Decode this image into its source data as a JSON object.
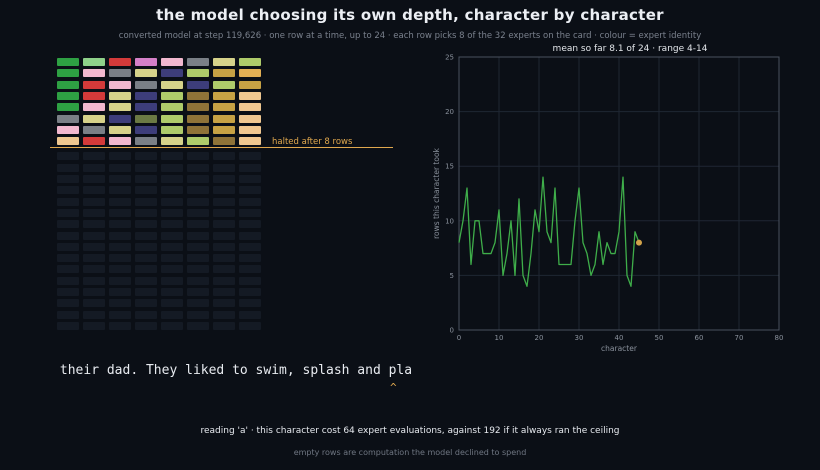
{
  "header": {
    "title": "the model choosing its own depth, character by character",
    "subtitle": "converted model at step 119,626  ·  one row at a time, up to 24  ·  each row picks 8 of the 32 experts on the card  ·  colour = expert identity"
  },
  "depth_grid": {
    "max_rows": 24,
    "experts_per_row": 8,
    "rows_used": 8,
    "halt_label": "halted after 8 rows",
    "empty_color": "#141a24",
    "rows": [
      [
        "#2ea043",
        "#8fd18a",
        "#d43a3a",
        "#d580c8",
        "#f2b8cf",
        "#7a7f86",
        "#d6d28a",
        "#aecb6a"
      ],
      [
        "#2ea043",
        "#f2b8cf",
        "#7a7f86",
        "#d6d28a",
        "#3d3d7a",
        "#aecb6a",
        "#c7a244",
        "#e3b054"
      ],
      [
        "#2ea043",
        "#d43a3a",
        "#f2b8cf",
        "#7a7f86",
        "#d6d28a",
        "#3d3d7a",
        "#aecb6a",
        "#c7a244"
      ],
      [
        "#2ea043",
        "#d43a3a",
        "#d6d28a",
        "#3d3d7a",
        "#aecb6a",
        "#8f7338",
        "#c7a244",
        "#efc790"
      ],
      [
        "#2ea043",
        "#f2b8cf",
        "#d6d28a",
        "#3d3d7a",
        "#aecb6a",
        "#8f7338",
        "#c7a244",
        "#efc790"
      ],
      [
        "#7a7f86",
        "#d6d28a",
        "#3d3d7a",
        "#6b7a44",
        "#aecb6a",
        "#8f7338",
        "#c7a244",
        "#efc790"
      ],
      [
        "#f2b8cf",
        "#7a7f86",
        "#d6d28a",
        "#3d3d7a",
        "#aecb6a",
        "#8f7338",
        "#c7a244",
        "#efc790"
      ],
      [
        "#efc790",
        "#d43a3a",
        "#f2b8cf",
        "#7a7f86",
        "#d6d28a",
        "#aecb6a",
        "#8f7338",
        "#efc790"
      ]
    ]
  },
  "chart_data": {
    "type": "line",
    "header": "mean so far 8.1 of 24  ·  range 4-14",
    "xlabel": "character",
    "ylabel": "rows this character took",
    "xlim": [
      0,
      80
    ],
    "ylim": [
      0,
      25
    ],
    "xticks": [
      0,
      10,
      20,
      30,
      40,
      50,
      60,
      70,
      80
    ],
    "yticks": [
      0,
      5,
      10,
      15,
      20,
      25
    ],
    "grid": true,
    "line_color": "#3fae4a",
    "marker_color": "#d1a24a",
    "x": [
      0,
      1,
      2,
      3,
      4,
      5,
      6,
      7,
      8,
      9,
      10,
      11,
      12,
      13,
      14,
      15,
      16,
      17,
      18,
      19,
      20,
      21,
      22,
      23,
      24,
      25,
      26,
      27,
      28,
      29,
      30,
      31,
      32,
      33,
      34,
      35,
      36,
      37,
      38,
      39,
      40,
      41,
      42,
      43,
      44,
      45
    ],
    "y": [
      8,
      10,
      13,
      6,
      10,
      10,
      7,
      7,
      7,
      8,
      11,
      5,
      7,
      10,
      5,
      12,
      5,
      4,
      7,
      11,
      9,
      14,
      9,
      8,
      13,
      6,
      6,
      6,
      6,
      10,
      13,
      8,
      7,
      5,
      6,
      9,
      6,
      8,
      7,
      7,
      9,
      14,
      5,
      4,
      9,
      8
    ],
    "current_point": {
      "x": 45,
      "y": 8
    }
  },
  "reading": {
    "text": "their dad. They liked to swim, splash and pla",
    "caret": "^",
    "status": "reading 'a'   ·   this character cost 64 expert evaluations, against 192 if it always ran the ceiling",
    "footnote": "empty rows are computation the model declined to spend"
  }
}
